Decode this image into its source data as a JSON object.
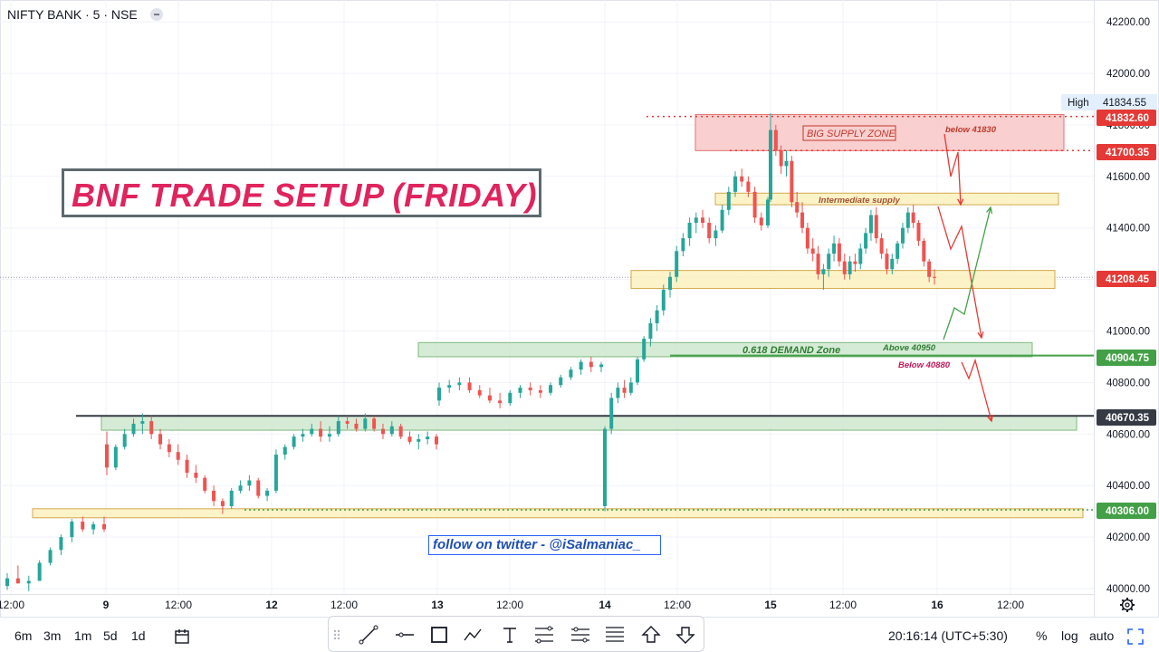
{
  "header": {
    "title": "NIFTY BANK · 5 · NSE"
  },
  "annotations": {
    "setup_title": "BNF TRADE SETUP (FRIDAY)",
    "twitter": "follow on twitter - @iSalmaniac_",
    "big_supply": "BIG SUPPLY ZONE",
    "below_41830": "below 41830",
    "intermediate_supply": "Intermediate supply",
    "demand_zone": "0.618  DEMAND Zone",
    "above_40950": "Above 40950",
    "below_40880": "Below 40880",
    "high_label": "High"
  },
  "chart_data": {
    "type": "candlestick",
    "symbol": "NIFTY BANK",
    "interval": "5",
    "exchange": "NSE",
    "ylim": [
      40000,
      42250
    ],
    "y_ticks": [
      42200,
      42000,
      41800,
      41600,
      41400,
      41200,
      41000,
      40800,
      40600,
      40400,
      40200,
      40000
    ],
    "x_ticks": [
      "12:00",
      "9",
      "12:00",
      "12",
      "12:00",
      "13",
      "12:00",
      "14",
      "12:00",
      "15",
      "12:00",
      "16",
      "12:00"
    ],
    "price_labels": [
      {
        "label": "41834.55",
        "type": "high"
      },
      {
        "label": "41832.60",
        "color": "#e53935"
      },
      {
        "label": "41700.35",
        "color": "#e53935"
      },
      {
        "label": "41208.45",
        "color": "#e53935"
      },
      {
        "label": "40904.75",
        "color": "#43a047"
      },
      {
        "label": "40670.35",
        "color": "#363a45"
      },
      {
        "label": "40306.00",
        "color": "#43a047"
      }
    ],
    "zones": [
      {
        "name": "big-supply-zone",
        "from": 41700,
        "to": 41840,
        "color": "#f8c7c7"
      },
      {
        "name": "intermediate-supply-zone",
        "from": 41490,
        "to": 41535,
        "color": "#fdf1c0"
      },
      {
        "name": "current-zone",
        "from": 41165,
        "to": 41235,
        "color": "#fdf1c0"
      },
      {
        "name": "demand-zone",
        "from": 40900,
        "to": 40955,
        "color": "#cfe8cf"
      },
      {
        "name": "mid-zone",
        "from": 40615,
        "to": 40670,
        "color": "#cfe8cf"
      },
      {
        "name": "low-zone",
        "from": 40275,
        "to": 40310,
        "color": "#fdf1c0"
      }
    ],
    "points": [
      [
        40010,
        40060,
        39995,
        40040
      ],
      [
        40040,
        40090,
        40020,
        40020
      ],
      [
        40020,
        40050,
        39990,
        40030
      ],
      [
        40030,
        40110,
        40030,
        40100
      ],
      [
        40100,
        40160,
        40090,
        40150
      ],
      [
        40150,
        40210,
        40130,
        40200
      ],
      [
        40200,
        40270,
        40180,
        40260
      ],
      [
        40260,
        40280,
        40220,
        40230
      ],
      [
        40230,
        40260,
        40210,
        40250
      ],
      [
        40250,
        40280,
        40220,
        40230
      ],
      [
        40560,
        40610,
        40440,
        40470
      ],
      [
        40470,
        40560,
        40460,
        40550
      ],
      [
        40550,
        40620,
        40540,
        40600
      ],
      [
        40600,
        40660,
        40590,
        40640
      ],
      [
        40640,
        40680,
        40600,
        40650
      ],
      [
        40650,
        40670,
        40580,
        40600
      ],
      [
        40600,
        40620,
        40540,
        40560
      ],
      [
        40560,
        40580,
        40510,
        40530
      ],
      [
        40530,
        40560,
        40480,
        40500
      ],
      [
        40500,
        40520,
        40430,
        40450
      ],
      [
        40450,
        40480,
        40410,
        40430
      ],
      [
        40430,
        40440,
        40370,
        40380
      ],
      [
        40380,
        40400,
        40320,
        40340
      ],
      [
        40340,
        40350,
        40290,
        40320
      ],
      [
        40320,
        40390,
        40310,
        40380
      ],
      [
        40380,
        40420,
        40370,
        40400
      ],
      [
        40400,
        40440,
        40380,
        40420
      ],
      [
        40420,
        40430,
        40350,
        40360
      ],
      [
        40360,
        40390,
        40340,
        40380
      ],
      [
        40380,
        40540,
        40370,
        40520
      ],
      [
        40520,
        40560,
        40500,
        40550
      ],
      [
        40550,
        40600,
        40540,
        40590
      ],
      [
        40590,
        40620,
        40570,
        40600
      ],
      [
        40600,
        40640,
        40590,
        40620
      ],
      [
        40620,
        40650,
        40570,
        40590
      ],
      [
        40590,
        40630,
        40570,
        40600
      ],
      [
        40600,
        40670,
        40590,
        40650
      ],
      [
        40650,
        40670,
        40620,
        40640
      ],
      [
        40640,
        40660,
        40610,
        40620
      ],
      [
        40620,
        40680,
        40610,
        40660
      ],
      [
        40660,
        40670,
        40610,
        40620
      ],
      [
        40620,
        40640,
        40580,
        40600
      ],
      [
        40600,
        40650,
        40590,
        40630
      ],
      [
        40630,
        40640,
        40580,
        40590
      ],
      [
        40590,
        40610,
        40560,
        40570
      ],
      [
        40570,
        40600,
        40540,
        40580
      ],
      [
        40580,
        40610,
        40560,
        40590
      ],
      [
        40590,
        40600,
        40540,
        40560
      ],
      [
        40730,
        40800,
        40710,
        40780
      ],
      [
        40780,
        40810,
        40760,
        40790
      ],
      [
        40790,
        40820,
        40770,
        40800
      ],
      [
        40800,
        40820,
        40760,
        40770
      ],
      [
        40770,
        40790,
        40740,
        40750
      ],
      [
        40750,
        40780,
        40720,
        40730
      ],
      [
        40730,
        40760,
        40700,
        40720
      ],
      [
        40720,
        40770,
        40710,
        40760
      ],
      [
        40760,
        40790,
        40740,
        40780
      ],
      [
        40780,
        40800,
        40750,
        40770
      ],
      [
        40770,
        40790,
        40740,
        40760
      ],
      [
        40760,
        40800,
        40750,
        40790
      ],
      [
        40790,
        40830,
        40780,
        40820
      ],
      [
        40820,
        40860,
        40810,
        40850
      ],
      [
        40850,
        40890,
        40830,
        40880
      ],
      [
        40880,
        40900,
        40840,
        40860
      ],
      [
        40860,
        40880,
        40840,
        40870
      ],
      [
        40320,
        40630,
        40300,
        40620
      ],
      [
        40620,
        40760,
        40600,
        40740
      ],
      [
        40740,
        40800,
        40720,
        40780
      ],
      [
        40780,
        40810,
        40740,
        40760
      ],
      [
        40760,
        40820,
        40750,
        40800
      ],
      [
        40800,
        40900,
        40790,
        40890
      ],
      [
        40890,
        40980,
        40880,
        40970
      ],
      [
        40970,
        41050,
        40940,
        41030
      ],
      [
        41030,
        41100,
        41000,
        41080
      ],
      [
        41080,
        41180,
        41060,
        41160
      ],
      [
        41160,
        41230,
        41130,
        41210
      ],
      [
        41210,
        41330,
        41190,
        41310
      ],
      [
        41310,
        41380,
        41290,
        41360
      ],
      [
        41360,
        41440,
        41330,
        41420
      ],
      [
        41420,
        41460,
        41380,
        41440
      ],
      [
        41440,
        41470,
        41400,
        41420
      ],
      [
        41420,
        41440,
        41340,
        41360
      ],
      [
        41360,
        41410,
        41330,
        41390
      ],
      [
        41390,
        41490,
        41380,
        41470
      ],
      [
        41470,
        41560,
        41450,
        41540
      ],
      [
        41540,
        41620,
        41520,
        41600
      ],
      [
        41600,
        41630,
        41560,
        41580
      ],
      [
        41580,
        41600,
        41520,
        41540
      ],
      [
        41540,
        41560,
        41420,
        41440
      ],
      [
        41440,
        41460,
        41390,
        41410
      ],
      [
        41410,
        41520,
        41400,
        41510
      ],
      [
        41510,
        41845,
        41500,
        41780
      ],
      [
        41780,
        41800,
        41680,
        41700
      ],
      [
        41700,
        41720,
        41610,
        41640
      ],
      [
        41640,
        41700,
        41600,
        41660
      ],
      [
        41660,
        41680,
        41480,
        41500
      ],
      [
        41500,
        41540,
        41440,
        41460
      ],
      [
        41460,
        41500,
        41380,
        41400
      ],
      [
        41400,
        41420,
        41300,
        41320
      ],
      [
        41320,
        41360,
        41270,
        41300
      ],
      [
        41300,
        41330,
        41200,
        41220
      ],
      [
        41220,
        41260,
        41160,
        41240
      ],
      [
        41240,
        41320,
        41210,
        41300
      ],
      [
        41300,
        41370,
        41270,
        41340
      ],
      [
        41340,
        41360,
        41250,
        41270
      ],
      [
        41270,
        41300,
        41200,
        41220
      ],
      [
        41220,
        41290,
        41200,
        41270
      ],
      [
        41270,
        41300,
        41230,
        41260
      ],
      [
        41260,
        41340,
        41240,
        41320
      ],
      [
        41320,
        41400,
        41300,
        41380
      ],
      [
        41380,
        41470,
        41350,
        41450
      ],
      [
        41450,
        41480,
        41340,
        41360
      ],
      [
        41360,
        41380,
        41280,
        41300
      ],
      [
        41300,
        41320,
        41220,
        41240
      ],
      [
        41240,
        41300,
        41220,
        41280
      ],
      [
        41280,
        41350,
        41260,
        41340
      ],
      [
        41340,
        41420,
        41320,
        41400
      ],
      [
        41400,
        41480,
        41380,
        41460
      ],
      [
        41460,
        41490,
        41400,
        41420
      ],
      [
        41420,
        41430,
        41330,
        41350
      ],
      [
        41350,
        41360,
        41250,
        41270
      ],
      [
        41270,
        41280,
        41190,
        41210
      ],
      [
        41210,
        41240,
        41180,
        41208
      ]
    ]
  },
  "toolbar": {
    "intervals": [
      "6m",
      "3m",
      "1m",
      "5d",
      "1d"
    ],
    "clock": "20:16:14 (UTC+5:30)",
    "percent": "%",
    "log": "log",
    "auto": "auto"
  },
  "colors": {
    "up": "#26a69a",
    "down": "#ef5350",
    "accent": "#e0245e"
  }
}
